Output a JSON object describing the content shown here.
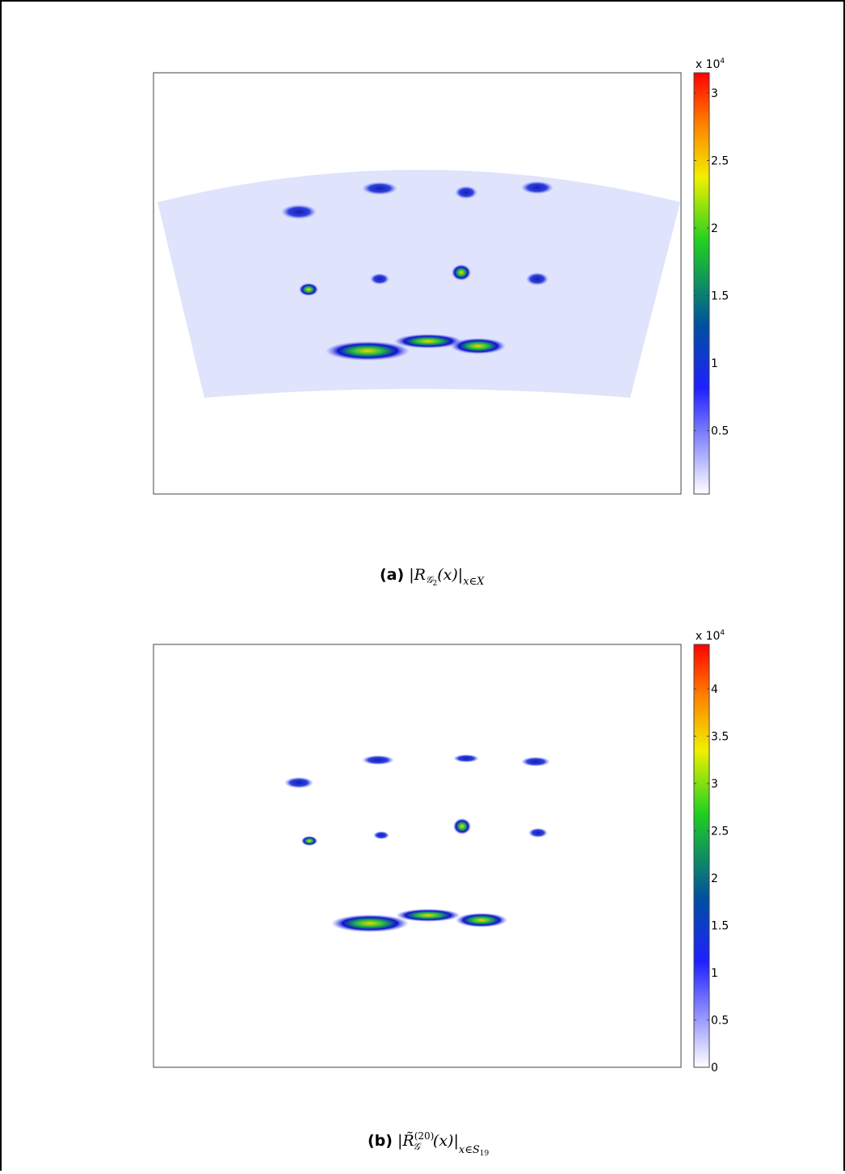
{
  "chart_data": [
    {
      "type": "heatmap",
      "colorbar": {
        "multiplier": "x 10",
        "exponent": "4",
        "clim": [
          0.03,
          3.15
        ],
        "ticks": [
          0.5,
          1,
          1.5,
          2,
          2.5,
          3
        ]
      },
      "caption": {
        "label": "(a)",
        "math": [
          "|R",
          "𝒢",
          "2",
          "(x)|",
          "x∈X"
        ]
      }
    },
    {
      "type": "heatmap",
      "colorbar": {
        "multiplier": "x 10",
        "exponent": "4",
        "clim": [
          0,
          4.47
        ],
        "ticks": [
          0,
          0.5,
          1,
          1.5,
          2,
          2.5,
          3,
          3.5,
          4
        ]
      },
      "caption": {
        "label": "(b)",
        "math": [
          "|R̃",
          "(20)",
          "𝒢",
          "(x)|",
          "x∈S",
          "19"
        ]
      }
    }
  ]
}
